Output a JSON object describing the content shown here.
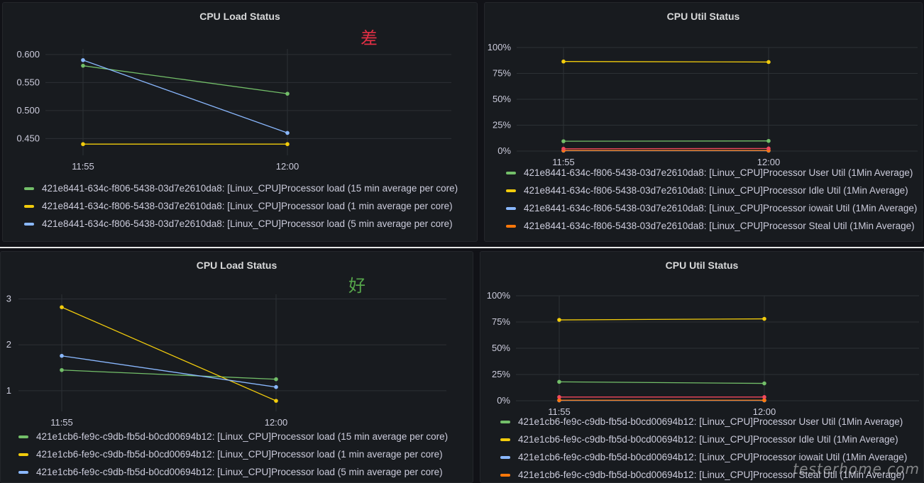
{
  "divider_color": "#e6e6e6",
  "watermark": "testerhome.com",
  "panels": [
    {
      "title": "CPU Load Status",
      "note": "差",
      "note_color": "#e02f44",
      "legend": [
        {
          "label": "421e8441-634c-f806-5438-03d7e2610da8: [Linux_CPU]Processor load (15 min average per core)",
          "color": "#73bf69"
        },
        {
          "label": "421e8441-634c-f806-5438-03d7e2610da8: [Linux_CPU]Processor load (1 min average per core)",
          "color": "#f2cc0c"
        },
        {
          "label": "421e8441-634c-f806-5438-03d7e2610da8: [Linux_CPU]Processor load (5 min average per core)",
          "color": "#8ab8ff"
        }
      ]
    },
    {
      "title": "CPU Util Status",
      "legend": [
        {
          "label": "421e8441-634c-f806-5438-03d7e2610da8: [Linux_CPU]Processor User Util (1Min Average)",
          "color": "#73bf69"
        },
        {
          "label": "421e8441-634c-f806-5438-03d7e2610da8: [Linux_CPU]Processor Idle Util (1Min Average)",
          "color": "#f2cc0c"
        },
        {
          "label": "421e8441-634c-f806-5438-03d7e2610da8: [Linux_CPU]Processor iowait Util (1Min Average)",
          "color": "#8ab8ff"
        },
        {
          "label": "421e8441-634c-f806-5438-03d7e2610da8: [Linux_CPU]Processor Steal Util (1Min Average)",
          "color": "#ff780a"
        }
      ]
    },
    {
      "title": "CPU Load Status",
      "note": "好",
      "note_color": "#56a64b",
      "legend": [
        {
          "label": "421e1cb6-fe9c-c9db-fb5d-b0cd00694b12: [Linux_CPU]Processor load (15 min average per core)",
          "color": "#73bf69"
        },
        {
          "label": "421e1cb6-fe9c-c9db-fb5d-b0cd00694b12: [Linux_CPU]Processor load (1 min average per core)",
          "color": "#f2cc0c"
        },
        {
          "label": "421e1cb6-fe9c-c9db-fb5d-b0cd00694b12: [Linux_CPU]Processor load (5 min average per core)",
          "color": "#8ab8ff"
        }
      ]
    },
    {
      "title": "CPU Util Status",
      "legend": [
        {
          "label": "421e1cb6-fe9c-c9db-fb5d-b0cd00694b12: [Linux_CPU]Processor User Util (1Min Average)",
          "color": "#73bf69"
        },
        {
          "label": "421e1cb6-fe9c-c9db-fb5d-b0cd00694b12: [Linux_CPU]Processor Idle Util (1Min Average)",
          "color": "#f2cc0c"
        },
        {
          "label": "421e1cb6-fe9c-c9db-fb5d-b0cd00694b12: [Linux_CPU]Processor iowait Util (1Min Average)",
          "color": "#8ab8ff"
        },
        {
          "label": "421e1cb6-fe9c-c9db-fb5d-b0cd00694b12: [Linux_CPU]Processor Steal Util (1Min Average)",
          "color": "#ff780a"
        }
      ]
    }
  ],
  "chart_data": [
    {
      "type": "line",
      "title": "CPU Load Status",
      "x": [
        "11:55",
        "12:00"
      ],
      "ylim": [
        0.42,
        0.61
      ],
      "yticks": [
        0.45,
        0.5,
        0.55,
        0.6
      ],
      "ytick_labels": [
        "0.450",
        "0.500",
        "0.550",
        "0.600"
      ],
      "grid": true,
      "legend_position": "bottom",
      "series": [
        {
          "name": "421e8441-634c-f806-5438-03d7e2610da8: [Linux_CPU]Processor load (15 min average per core)",
          "color": "#73bf69",
          "values": [
            0.58,
            0.53
          ]
        },
        {
          "name": "421e8441-634c-f806-5438-03d7e2610da8: [Linux_CPU]Processor load (1 min average per core)",
          "color": "#f2cc0c",
          "values": [
            0.44,
            0.44
          ]
        },
        {
          "name": "421e8441-634c-f806-5438-03d7e2610da8: [Linux_CPU]Processor load (5 min average per core)",
          "color": "#8ab8ff",
          "values": [
            0.59,
            0.46
          ]
        }
      ]
    },
    {
      "type": "line",
      "title": "CPU Util Status",
      "x": [
        "11:55",
        "12:00"
      ],
      "ylim": [
        0,
        100
      ],
      "yticks": [
        0,
        25,
        50,
        75,
        100
      ],
      "ytick_labels": [
        "0%",
        "25%",
        "50%",
        "75%",
        "100%"
      ],
      "grid": true,
      "legend_position": "bottom",
      "series": [
        {
          "name": "421e8441-634c-f806-5438-03d7e2610da8: [Linux_CPU]Processor User Util (1Min Average)",
          "color": "#73bf69",
          "values": [
            9.5,
            9.8
          ]
        },
        {
          "name": "421e8441-634c-f806-5438-03d7e2610da8: [Linux_CPU]Processor Idle Util (1Min Average)",
          "color": "#f2cc0c",
          "values": [
            86.5,
            86
          ]
        },
        {
          "name": "421e8441-634c-f806-5438-03d7e2610da8: [Linux_CPU]Processor iowait Util (1Min Average)",
          "color": "#8ab8ff",
          "values": [
            0.4,
            0.4
          ]
        },
        {
          "name": "421e8441-634c-f806-5438-03d7e2610da8: [Linux_CPU]Processor Steal Util (1Min Average)",
          "color": "#ff780a",
          "values": [
            0.6,
            0.6
          ]
        },
        {
          "name": "",
          "color": "#f2495c",
          "values": [
            2.2,
            2.5
          ]
        }
      ]
    },
    {
      "type": "line",
      "title": "CPU Load Status",
      "x": [
        "11:55",
        "12:00"
      ],
      "ylim": [
        0.55,
        3.1
      ],
      "yticks": [
        1,
        2,
        3
      ],
      "ytick_labels": [
        "1",
        "2",
        "3"
      ],
      "grid": true,
      "legend_position": "bottom",
      "series": [
        {
          "name": "421e1cb6-fe9c-c9db-fb5d-b0cd00694b12: [Linux_CPU]Processor load (15 min average per core)",
          "color": "#73bf69",
          "values": [
            1.45,
            1.25
          ]
        },
        {
          "name": "421e1cb6-fe9c-c9db-fb5d-b0cd00694b12: [Linux_CPU]Processor load (1 min average per core)",
          "color": "#f2cc0c",
          "values": [
            2.82,
            0.78
          ]
        },
        {
          "name": "421e1cb6-fe9c-c9db-fb5d-b0cd00694b12: [Linux_CPU]Processor load (5 min average per core)",
          "color": "#8ab8ff",
          "values": [
            1.76,
            1.08
          ]
        }
      ]
    },
    {
      "type": "line",
      "title": "CPU Util Status",
      "x": [
        "11:55",
        "12:00"
      ],
      "ylim": [
        0,
        100
      ],
      "yticks": [
        0,
        25,
        50,
        75,
        100
      ],
      "ytick_labels": [
        "0%",
        "25%",
        "50%",
        "75%",
        "100%"
      ],
      "grid": true,
      "legend_position": "bottom",
      "series": [
        {
          "name": "421e1cb6-fe9c-c9db-fb5d-b0cd00694b12: [Linux_CPU]Processor User Util (1Min Average)",
          "color": "#73bf69",
          "values": [
            18,
            16.5
          ]
        },
        {
          "name": "421e1cb6-fe9c-c9db-fb5d-b0cd00694b12: [Linux_CPU]Processor Idle Util (1Min Average)",
          "color": "#f2cc0c",
          "values": [
            77,
            78
          ]
        },
        {
          "name": "421e1cb6-fe9c-c9db-fb5d-b0cd00694b12: [Linux_CPU]Processor iowait Util (1Min Average)",
          "color": "#8ab8ff",
          "values": [
            0.3,
            0.3
          ]
        },
        {
          "name": "421e1cb6-fe9c-c9db-fb5d-b0cd00694b12: [Linux_CPU]Processor Steal Util (1Min Average)",
          "color": "#ff780a",
          "values": [
            0.5,
            0.5
          ]
        },
        {
          "name": "",
          "color": "#f2495c",
          "values": [
            3.5,
            3.5
          ]
        }
      ]
    }
  ]
}
